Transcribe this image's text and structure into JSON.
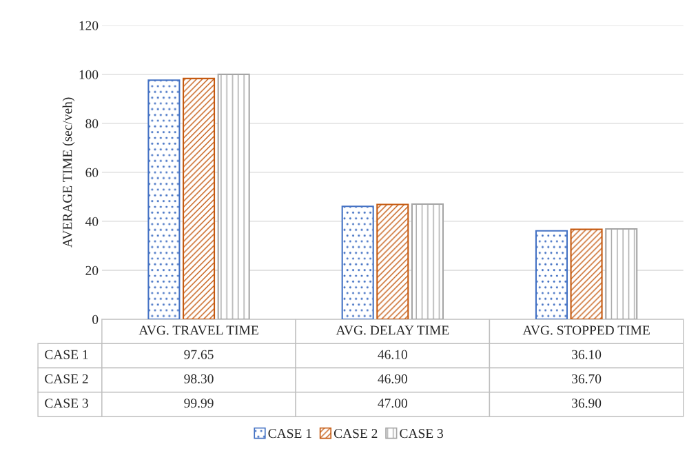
{
  "chart_data": {
    "type": "bar",
    "categories": [
      "AVG. TRAVEL TIME",
      "AVG. DELAY TIME",
      "AVG. STOPPED TIME"
    ],
    "ylabel": "AVERAGE TIME (sec/veh)",
    "ylim": [
      0,
      120
    ],
    "yticks": [
      0,
      20,
      40,
      60,
      80,
      100,
      120
    ],
    "grid": "y",
    "legend": "bottom",
    "series": [
      {
        "name": "CASE 1",
        "color": "#4472c4",
        "values": [
          97.65,
          46.1,
          36.1
        ],
        "value_labels": [
          "97.65",
          "46.10",
          "36.10"
        ]
      },
      {
        "name": "CASE 2",
        "color": "#c55a11",
        "values": [
          98.3,
          46.9,
          36.7
        ],
        "value_labels": [
          "98.30",
          "46.90",
          "36.70"
        ]
      },
      {
        "name": "CASE 3",
        "color": "#a5a5a5",
        "values": [
          99.99,
          47.0,
          36.9
        ],
        "value_labels": [
          "99.99",
          "47.00",
          "36.90"
        ]
      }
    ]
  }
}
